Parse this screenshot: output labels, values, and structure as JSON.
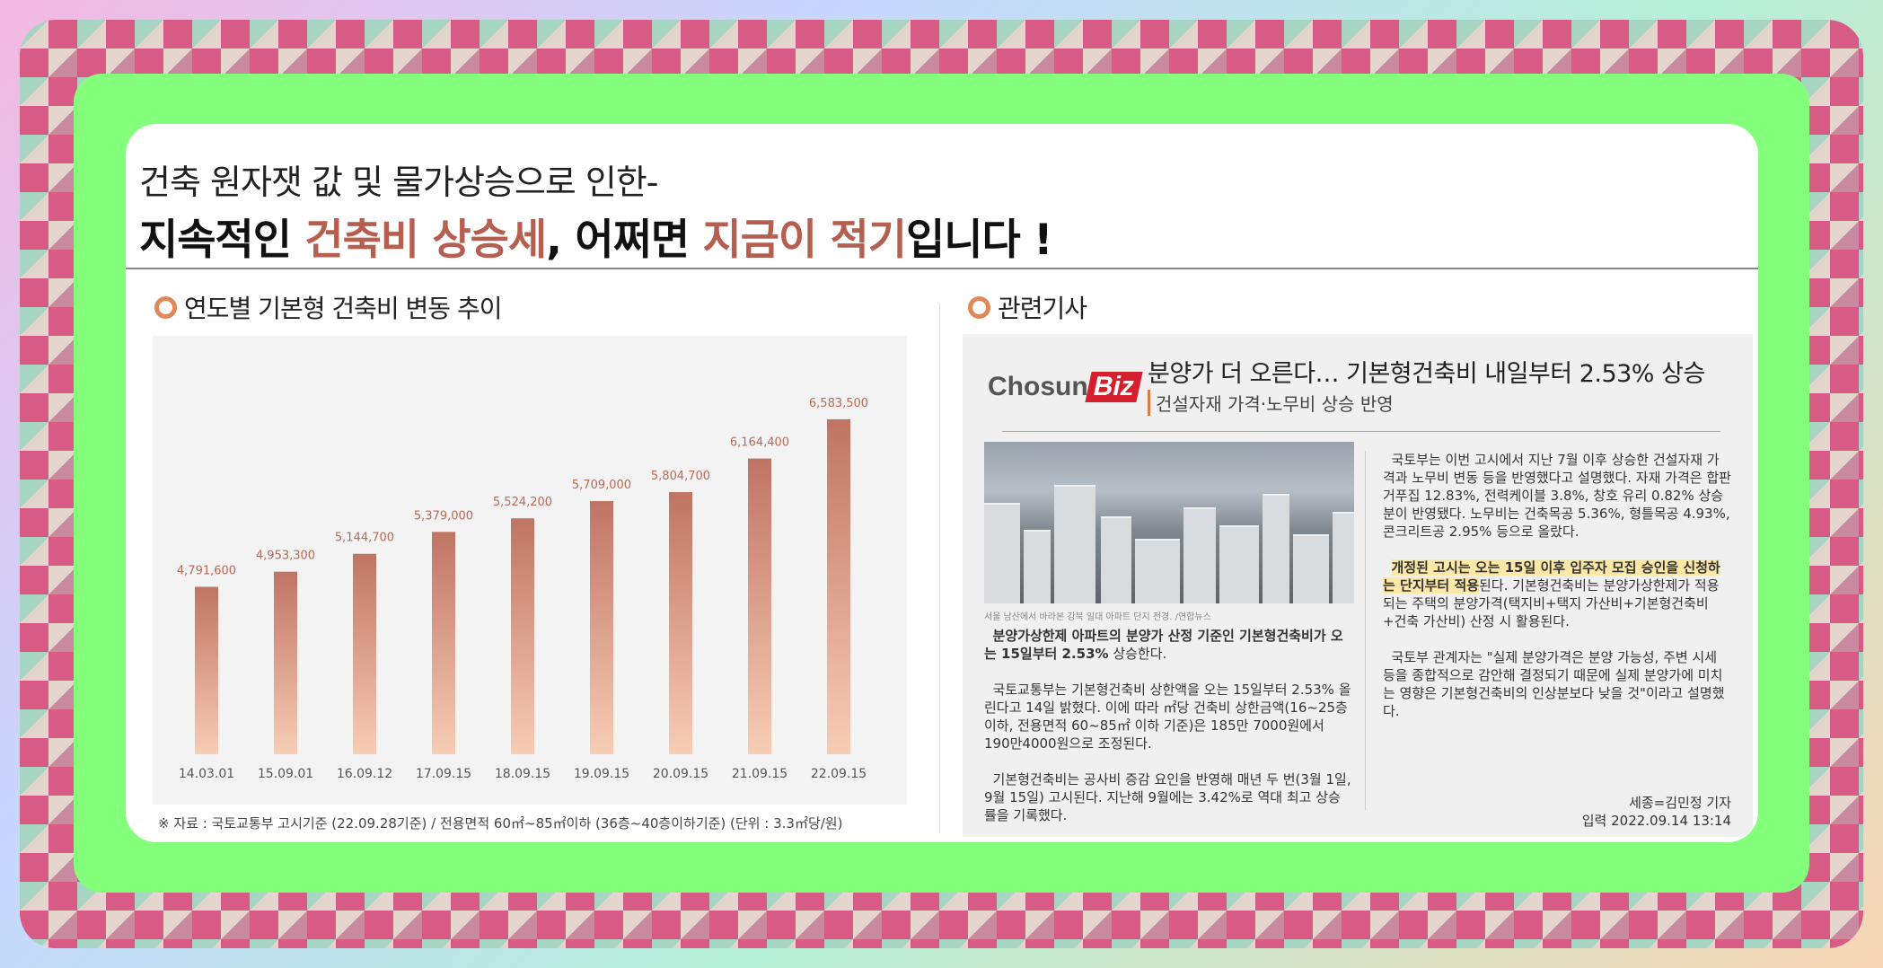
{
  "header": {
    "line1": "건축 원자잿 값 및 물가상승으로 인한-",
    "line2_a": "지속적인 ",
    "line2_b": "건축비 상승세",
    "line2_c": ", 어쩌면 ",
    "line2_d": "지금이 적기",
    "line2_e": "입니다 !"
  },
  "sections": {
    "chart_title": "연도별 기본형 건축비 변동 추이",
    "news_title": "관련기사"
  },
  "chart_data": {
    "type": "bar",
    "categories": [
      "14.03.01",
      "15.09.01",
      "16.09.12",
      "17.09.15",
      "18.09.15",
      "19.09.15",
      "20.09.15",
      "21.09.15",
      "22.09.15"
    ],
    "values": [
      4791600,
      4953300,
      5144700,
      5379000,
      5524200,
      5709000,
      5804700,
      6164400,
      6583500
    ],
    "labels": [
      "4,791,600",
      "4,953,300",
      "5,144,700",
      "5,379,000",
      "5,524,200",
      "5,709,000",
      "5,804,700",
      "6,164,400",
      "6,583,500"
    ],
    "title": "연도별 기본형 건축비 변동 추이",
    "ylim": [
      3000000,
      6900000
    ],
    "grid": false,
    "colors": {
      "top": "#bf7563",
      "bottom": "#f8cdb5",
      "label": "#b86a55"
    }
  },
  "footnote": "※ 자료 :  국토교통부 고시기준 (22.09.28기준) / 전용면적 60㎡~85㎡이하 (36층~40층이하기준)  (단위 : 3.3㎡당/원)",
  "news": {
    "logo_a": "Chosun",
    "logo_b": "Biz",
    "title": "분양가 더 오른다… 기본형건축비 내일부터 2.53% 상승",
    "subtitle": "건설자재 가격·노무비 상승 반영",
    "caption": "서울 남산에서 바라본 강북 일대 아파트 단지 전경. /연합뉴스",
    "left_p1_bold": "분양가상한제 아파트의 분양가 산정 기준인 기본형건축비가 오는 15일부터 2.53%",
    "left_p1_rest": " 상승한다.",
    "left_p2": "국토교통부는 기본형건축비 상한액을 오는 15일부터 2.53% 올린다고 14일 밝혔다. 이에 따라 ㎡당 건축비 상한금액(16~25층 이하, 전용면적 60~85㎡ 이하 기준)은 185만 7000원에서 190만4000원으로 조정된다.",
    "left_p3": "기본형건축비는 공사비 증감 요인을 반영해 매년 두 번(3월 1일, 9월 15일) 고시된다. 지난해 9월에는 3.42%로 역대 최고 상승률을 기록했다.",
    "right_p1": "국토부는 이번 고시에서 지난 7월 이후 상승한 건설자재 가격과 노무비 변동 등을 반영했다고 설명했다. 자재 가격은 합판 거푸집 12.83%, 전력케이블 3.8%, 창호 유리 0.82% 상승분이 반영됐다. 노무비는 건축목공 5.36%, 형틀목공 4.93%, 콘크리트공 2.95% 등으로 올랐다.",
    "right_p2_bold": "개정된 고시는 오는 15일 이후 입주자 모집 승인을 신청하는 단지부터 적용",
    "right_p2_rest": "된다. 기본형건축비는 분양가상한제가 적용되는 주택의 분양가격(택지비+택지 가산비+기본형건축비+건축 가산비) 산정 시 활용된다.",
    "right_p3": "국토부 관계자는 \"실제 분양가격은 분양 가능성, 주변 시세 등을 종합적으로 감안해 결정되기 때문에 실제 분양가에 미치는 영향은 기본형건축비의 인상분보다 낮을 것\"이라고 설명했다.",
    "reporter": "세종=김민정 기자",
    "date": "입력 2022.09.14 13:14"
  }
}
